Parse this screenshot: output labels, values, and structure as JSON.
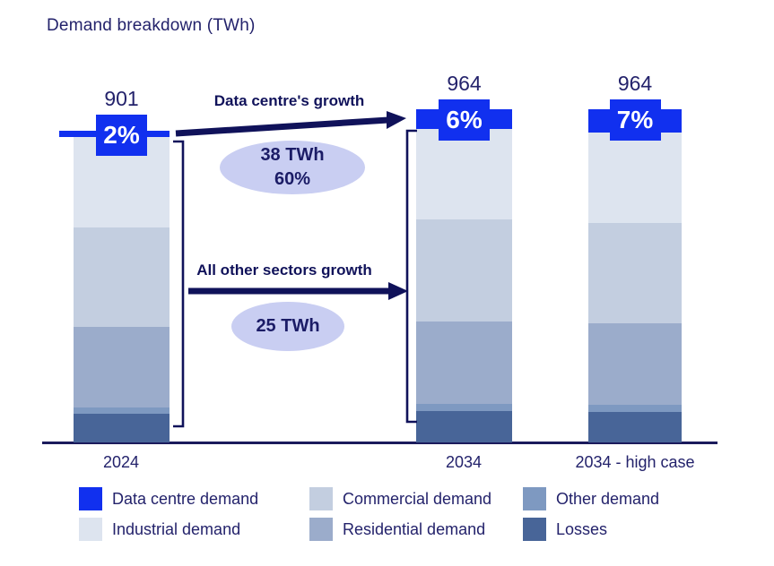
{
  "title": "Demand breakdown (TWh)",
  "colors": {
    "accent_blue": "#1130ef",
    "navy_text": "#23226b",
    "dark_navy": "#10125a",
    "axis": "#1b1b5c",
    "bubble_fill": "#c9cef2"
  },
  "chart_data": {
    "type": "bar",
    "stacked": true,
    "title": "Demand breakdown (TWh)",
    "unit": "TWh",
    "categories": [
      "2024",
      "2034",
      "2034 - high case"
    ],
    "totals": [
      "901",
      "964",
      "964"
    ],
    "data_centre_pct_labels": [
      "2%",
      "6%",
      "7%"
    ],
    "ylim": [
      0,
      1000
    ],
    "grid": false,
    "series": [
      {
        "name": "Data centre demand",
        "color": "#1130ef",
        "values": [
          18,
          56,
          68
        ]
      },
      {
        "name": "Industrial demand",
        "color": "#dde4ef",
        "values": [
          261,
          264,
          260
        ]
      },
      {
        "name": "Commercial demand",
        "color": "#c3cee0",
        "values": [
          289,
          295,
          291
        ]
      },
      {
        "name": "Residential demand",
        "color": "#9baccb",
        "values": [
          232,
          238,
          235
        ]
      },
      {
        "name": "Other demand",
        "color": "#7e99c1",
        "values": [
          18,
          21,
          21
        ]
      },
      {
        "name": "Losses",
        "color": "#486598",
        "values": [
          83,
          90,
          89
        ]
      }
    ],
    "annotations": [
      {
        "label": "Data centre's growth",
        "bubble_line1": "38 TWh",
        "bubble_line2": "60%"
      },
      {
        "label": "All other sectors growth",
        "bubble_line1": "25 TWh",
        "bubble_line2": ""
      }
    ]
  },
  "legend": {
    "items": [
      {
        "label": "Data centre demand",
        "color": "#1130ef"
      },
      {
        "label": "Commercial demand",
        "color": "#c3cee0"
      },
      {
        "label": "Other demand",
        "color": "#7e99c1"
      },
      {
        "label": "Industrial demand",
        "color": "#dde4ef"
      },
      {
        "label": "Residential demand",
        "color": "#9baccb"
      },
      {
        "label": "Losses",
        "color": "#486598"
      }
    ]
  }
}
